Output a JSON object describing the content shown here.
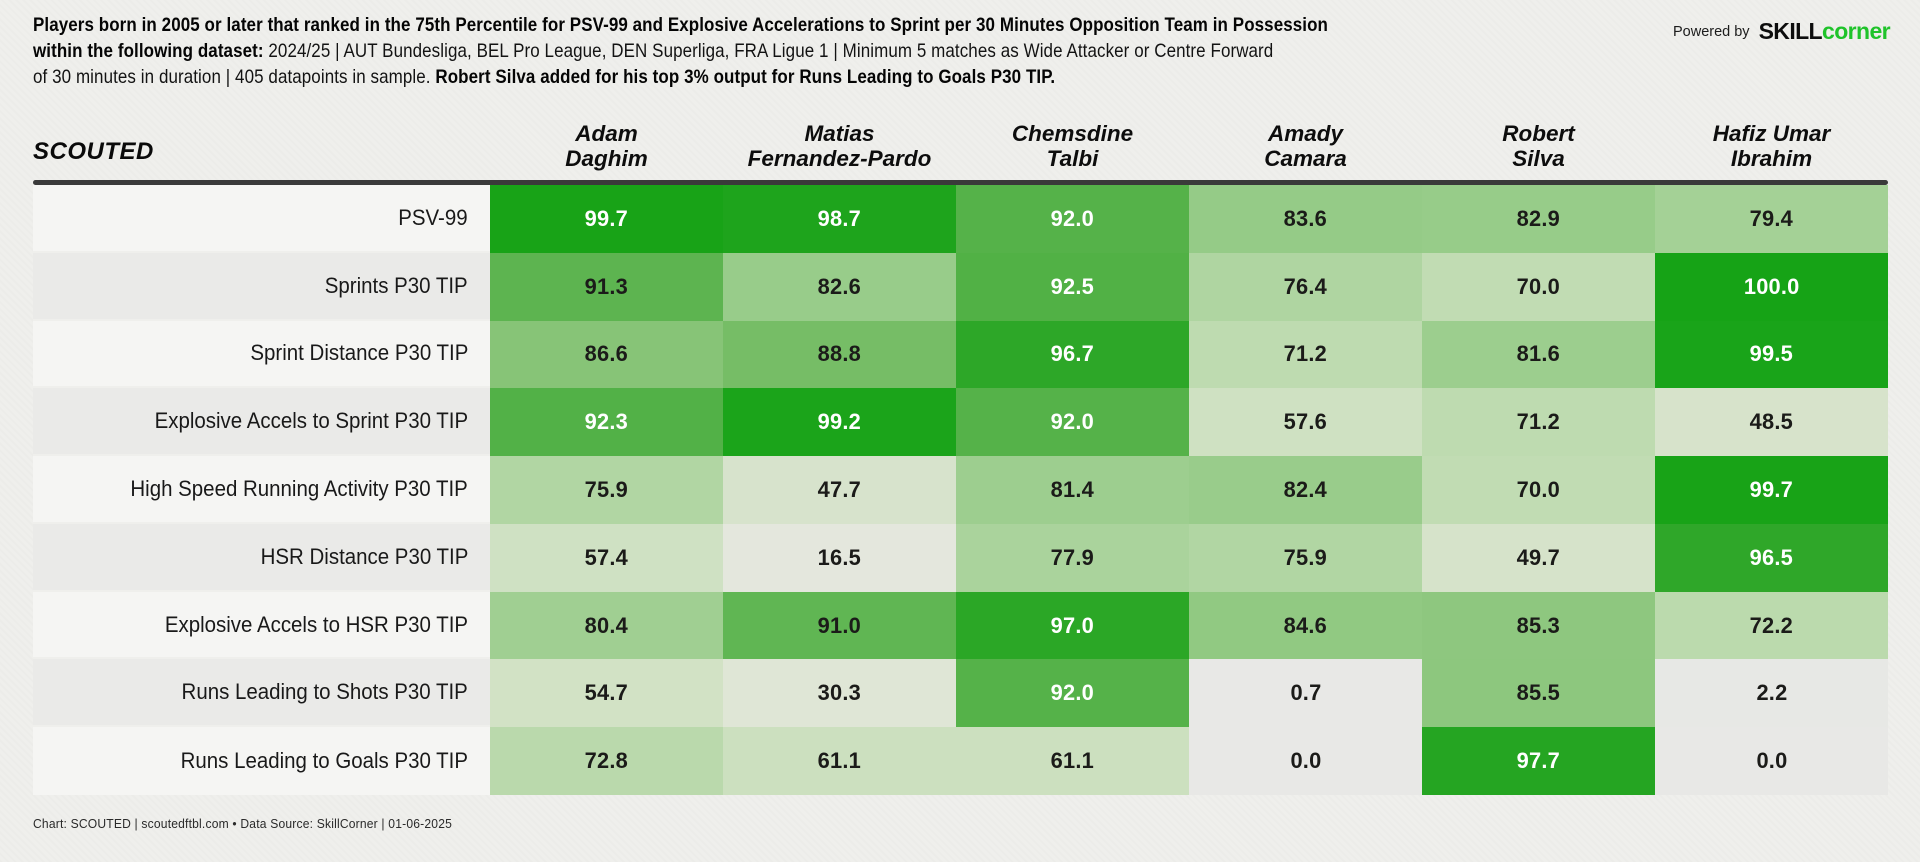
{
  "header": {
    "title_lines": [
      [
        {
          "t": "Players born in 2005 or later that ranked in the 75th Percentile for PSV-99 and Explosive Accelerations to Sprint per 30 Minutes Opposition Team in Possession",
          "b": true
        }
      ],
      [
        {
          "t": "within the following dataset: ",
          "b": true
        },
        {
          "t": "2024/25 | AUT Bundesliga, BEL Pro League, DEN Superliga, FRA Ligue 1 | Minimum 5 matches as Wide Attacker or Centre Forward",
          "b": false
        }
      ],
      [
        {
          "t": "of 30 minutes in duration | 405 datapoints in sample. ",
          "b": false
        },
        {
          "t": "Robert Silva added for his top 3% output for Runs Leading to Goals P30 TIP.",
          "b": true
        }
      ]
    ],
    "powered_by": {
      "label": "Powered by",
      "brand_black": "SKILL",
      "brand_green": "corner",
      "brand_green_color": "#1fc32a"
    }
  },
  "table": {
    "logo": "SCOUTED",
    "players": [
      [
        "Adam",
        "Daghim"
      ],
      [
        "Matias",
        "Fernandez-Pardo"
      ],
      [
        "Chemsdine",
        "Talbi"
      ],
      [
        "Amady",
        "Camara"
      ],
      [
        "Robert",
        "Silva"
      ],
      [
        "Hafiz Umar",
        "Ibrahim"
      ]
    ]
  },
  "chart_data": {
    "type": "heatmap",
    "title": "Players born in 2005 or later that ranked in the 75th Percentile for PSV-99 and Explosive Accelerations to Sprint per 30 Minutes Opposition Team in Possession within the following dataset: 2024/25 | AUT Bundesliga, BEL Pro League, DEN Superliga, FRA Ligue 1 | Minimum 5 matches as Wide Attacker or Centre Forward of 30 minutes in duration | 405 datapoints in sample. Robert Silva added for his top 3% output for Runs Leading to Goals P30 TIP.",
    "columns": [
      "Adam Daghim",
      "Matias Fernandez-Pardo",
      "Chemsdine Talbi",
      "Amady Camara",
      "Robert Silva",
      "Hafiz Umar Ibrahim"
    ],
    "rows": [
      {
        "metric": "PSV-99",
        "values": [
          99.7,
          98.7,
          92.0,
          83.6,
          82.9,
          79.4
        ]
      },
      {
        "metric": "Sprints P30 TIP",
        "values": [
          91.3,
          82.6,
          92.5,
          76.4,
          70.0,
          100.0
        ]
      },
      {
        "metric": "Sprint Distance P30 TIP",
        "values": [
          86.6,
          88.8,
          96.7,
          71.2,
          81.6,
          99.5
        ]
      },
      {
        "metric": "Explosive Accels to Sprint P30 TIP",
        "values": [
          92.3,
          99.2,
          92.0,
          57.6,
          71.2,
          48.5
        ]
      },
      {
        "metric": "High Speed Running Activity P30 TIP",
        "values": [
          75.9,
          47.7,
          81.4,
          82.4,
          70.0,
          99.7
        ]
      },
      {
        "metric": "HSR Distance P30 TIP",
        "values": [
          57.4,
          16.5,
          77.9,
          75.9,
          49.7,
          96.5
        ]
      },
      {
        "metric": "Explosive Accels to HSR P30 TIP",
        "values": [
          80.4,
          91.0,
          97.0,
          84.6,
          85.3,
          72.2
        ]
      },
      {
        "metric": "Runs Leading to Shots P30 TIP",
        "values": [
          54.7,
          30.3,
          92.0,
          0.7,
          85.5,
          2.2
        ]
      },
      {
        "metric": "Runs Leading to Goals P30 TIP",
        "values": [
          72.8,
          61.1,
          61.1,
          0.0,
          97.7,
          0.0
        ]
      }
    ],
    "value_range": [
      0,
      100
    ],
    "grid": false,
    "legend_position": "none",
    "color_scale": {
      "stops": [
        {
          "v": 0,
          "color": "#e8e8e6"
        },
        {
          "v": 20,
          "color": "#e3e7db"
        },
        {
          "v": 40,
          "color": "#dce5d2"
        },
        {
          "v": 50,
          "color": "#d6e3ca"
        },
        {
          "v": 60,
          "color": "#cde0c0"
        },
        {
          "v": 70,
          "color": "#c1dcb3"
        },
        {
          "v": 75,
          "color": "#b4d7a6"
        },
        {
          "v": 80,
          "color": "#a2d094"
        },
        {
          "v": 84,
          "color": "#93ca85"
        },
        {
          "v": 86,
          "color": "#8bc67b"
        },
        {
          "v": 88,
          "color": "#7ec06d"
        },
        {
          "v": 90,
          "color": "#6bb95c"
        },
        {
          "v": 92,
          "color": "#55b249"
        },
        {
          "v": 94,
          "color": "#43ac39"
        },
        {
          "v": 96,
          "color": "#33a82c"
        },
        {
          "v": 98,
          "color": "#22a520"
        },
        {
          "v": 100,
          "color": "#16a316"
        }
      ],
      "white_text_threshold": 92,
      "white_text_color": "#ffffff",
      "dark_text_color": "#1b1b19"
    }
  },
  "footer": {
    "text": "Chart: SCOUTED | scoutedftbl.com • Data Source: SkillCorner | 01-06-2025"
  }
}
